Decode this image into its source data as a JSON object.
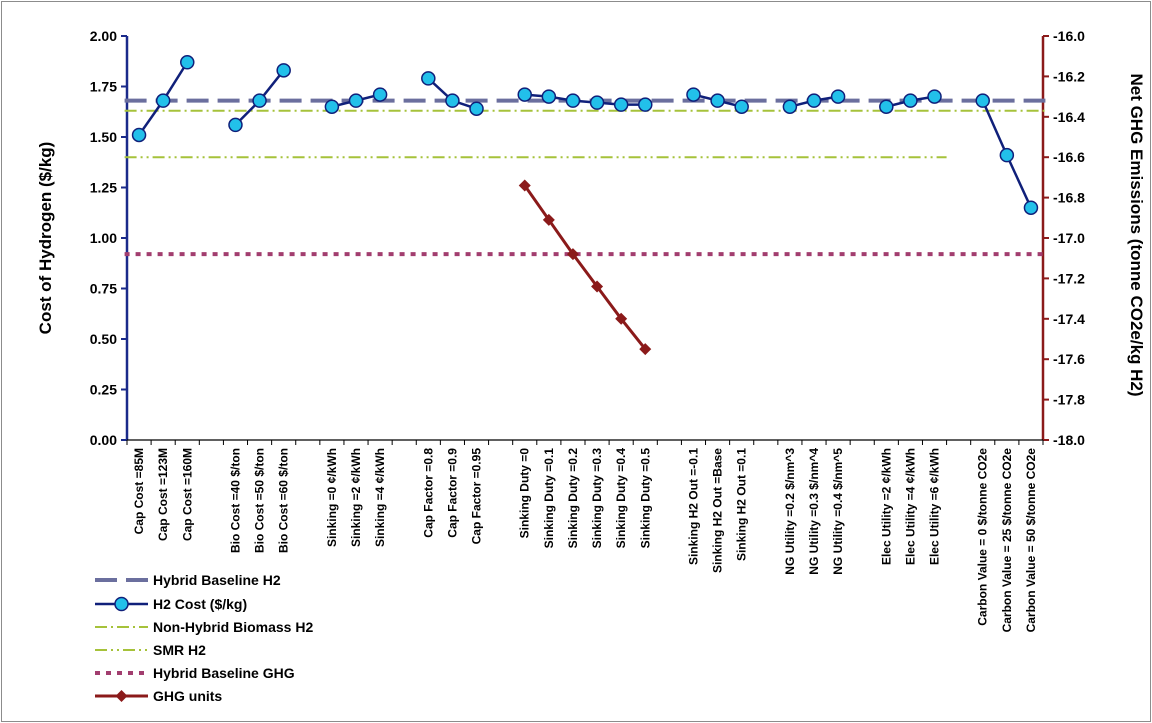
{
  "chart_data": {
    "type": "line",
    "title": "",
    "ylabel": "Cost of Hydrogen ($/kg)",
    "y2label": "Net GHG Emissions (tonne CO2e/kg H2)",
    "ylim": [
      0,
      2
    ],
    "y2lim": [
      -18,
      -16
    ],
    "yticks": [
      "0.00",
      "0.25",
      "0.50",
      "0.75",
      "1.00",
      "1.25",
      "1.50",
      "1.75",
      "2.00"
    ],
    "y2ticks": [
      "-18.0",
      "-17.8",
      "-17.6",
      "-17.4",
      "-17.2",
      "-17.0",
      "-16.8",
      "-16.6",
      "-16.4",
      "-16.2",
      "-16.0"
    ],
    "grid": false,
    "legend_position": "bottom-left",
    "categories": [
      "Cap Cost =85M",
      "Cap Cost =123M",
      "Cap Cost =160M",
      "",
      "Bio Cost =40 $/ton",
      "Bio Cost =50 $/ton",
      "Bio Cost =60 $/ton",
      "",
      "Sinking =0 ¢/kWh",
      "Sinking =2 ¢/kWh",
      "Sinking =4 ¢/kWh",
      "",
      "Cap Factor =0.8",
      "Cap Factor =0.9",
      "Cap Factor =0.95",
      "",
      "Sinking Duty =0",
      "Sinking Duty =0.1",
      "Sinking Duty =0.2",
      "Sinking Duty =0.3",
      "Sinking Duty =0.4",
      "Sinking Duty =0.5",
      "",
      "Sinking H2 Out =-0.1",
      "Sinking H2 Out =Base",
      "Sinking H2 Out =0.1",
      "",
      "NG Utility =0.2 $/nm^3",
      "NG Utility =0.3 $/nm^4",
      "NG Utility =0.4 $/nm^5",
      "",
      "Elec Utility =2 ¢/kWh",
      "Elec Utility =4 ¢/kWh",
      "Elec Utility =6 ¢/kWh",
      "",
      "Carbon Value = 0 $/tonne CO2e",
      "Carbon Value = 25 $/tonne CO2e",
      "Carbon Value = 50 $/tonne CO2e"
    ],
    "series": [
      {
        "name": "Hybrid Baseline H2",
        "axis": "left",
        "style": "long-dash",
        "color": "#6b6f9e",
        "constant": 1.68
      },
      {
        "name": "H2 Cost ($/kg)",
        "axis": "left",
        "style": "line-circle",
        "color": "#10207a",
        "marker_color": "#22c0ea",
        "segments": [
          [
            [
              0,
              1.51
            ],
            [
              1,
              1.68
            ],
            [
              2,
              1.87
            ]
          ],
          [
            [
              4,
              1.56
            ],
            [
              5,
              1.68
            ],
            [
              6,
              1.83
            ]
          ],
          [
            [
              8,
              1.65
            ],
            [
              9,
              1.68
            ],
            [
              10,
              1.71
            ]
          ],
          [
            [
              12,
              1.79
            ],
            [
              13,
              1.68
            ],
            [
              14,
              1.64
            ]
          ],
          [
            [
              16,
              1.71
            ],
            [
              17,
              1.7
            ],
            [
              18,
              1.68
            ],
            [
              19,
              1.67
            ],
            [
              20,
              1.66
            ],
            [
              21,
              1.66
            ]
          ],
          [
            [
              23,
              1.71
            ],
            [
              24,
              1.68
            ],
            [
              25,
              1.65
            ]
          ],
          [
            [
              27,
              1.65
            ],
            [
              28,
              1.68
            ],
            [
              29,
              1.7
            ]
          ],
          [
            [
              31,
              1.65
            ],
            [
              32,
              1.68
            ],
            [
              33,
              1.7
            ]
          ],
          [
            [
              35,
              1.68
            ],
            [
              36,
              1.41
            ],
            [
              37,
              1.15
            ]
          ]
        ]
      },
      {
        "name": "Non-Hybrid Biomass H2",
        "axis": "left",
        "style": "dash-dot",
        "color": "#a6c23a",
        "constant": 1.63
      },
      {
        "name": "SMR H2",
        "axis": "left",
        "style": "dash-dot-dot",
        "color": "#a6c23a",
        "constant": 1.4
      },
      {
        "name": "Hybrid Baseline GHG",
        "axis": "right",
        "style": "dotted",
        "color": "#a23e6f",
        "constant": -17.08
      },
      {
        "name": "GHG units",
        "axis": "right",
        "style": "line-diamond",
        "color": "#8b1a1a",
        "points": [
          [
            16,
            -16.74
          ],
          [
            17,
            -16.91
          ],
          [
            18,
            -17.08
          ],
          [
            19,
            -17.24
          ],
          [
            20,
            -17.4
          ],
          [
            21,
            -17.55
          ]
        ]
      }
    ]
  }
}
